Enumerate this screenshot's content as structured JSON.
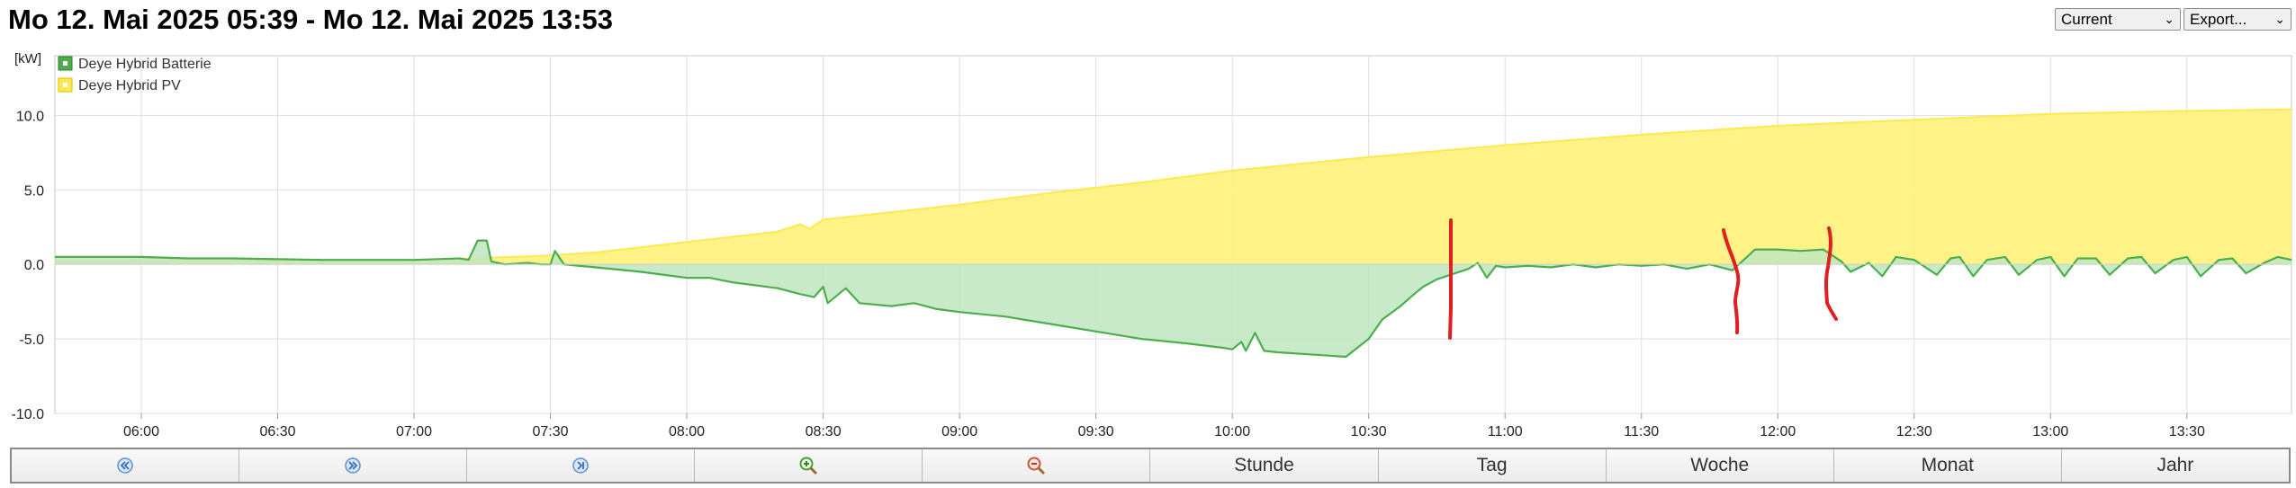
{
  "header": {
    "title": "Mo 12. Mai 2025 05:39 - Mo 12. Mai 2025 13:53",
    "range_select": "Current",
    "export_select": "Export..."
  },
  "nav": {
    "buttons": [
      {
        "name": "rewind-button",
        "icon": "double-left-icon",
        "label": ""
      },
      {
        "name": "forward-button",
        "icon": "double-right-icon",
        "label": ""
      },
      {
        "name": "to-end-button",
        "icon": "skip-end-icon",
        "label": ""
      },
      {
        "name": "zoom-in-button",
        "icon": "zoom-in-icon",
        "label": ""
      },
      {
        "name": "zoom-out-button",
        "icon": "zoom-out-icon",
        "label": ""
      },
      {
        "name": "hour-button",
        "icon": "",
        "label": "Stunde"
      },
      {
        "name": "day-button",
        "icon": "",
        "label": "Tag"
      },
      {
        "name": "week-button",
        "icon": "",
        "label": "Woche"
      },
      {
        "name": "month-button",
        "icon": "",
        "label": "Monat"
      },
      {
        "name": "year-button",
        "icon": "",
        "label": "Jahr"
      }
    ]
  },
  "chart_data": {
    "type": "area",
    "ylabel": "[kW]",
    "ylim": [
      -10,
      14
    ],
    "yticks": [
      10.0,
      5.0,
      0.0,
      -5.0,
      -10.0
    ],
    "ytick_labels": [
      "10.0",
      "5.0",
      "0.0",
      "-5.0",
      "-10.0"
    ],
    "xlim": [
      "05:41",
      "13:53"
    ],
    "xtick_labels": [
      "06:00",
      "06:30",
      "07:00",
      "07:30",
      "08:00",
      "08:30",
      "09:00",
      "09:30",
      "10:00",
      "10:30",
      "11:00",
      "11:30",
      "12:00",
      "12:30",
      "13:00",
      "13:30"
    ],
    "grid": true,
    "legend_position": "top-left",
    "series": [
      {
        "name": "Deye Hybrid Batterie",
        "color": "#4cae4c",
        "fill": "#c0e6bf",
        "points": [
          [
            "05:41",
            0.5
          ],
          [
            "05:50",
            0.5
          ],
          [
            "06:00",
            0.5
          ],
          [
            "06:10",
            0.4
          ],
          [
            "06:20",
            0.4
          ],
          [
            "06:30",
            0.35
          ],
          [
            "06:40",
            0.3
          ],
          [
            "06:50",
            0.3
          ],
          [
            "07:00",
            0.3
          ],
          [
            "07:10",
            0.4
          ],
          [
            "07:12",
            0.3
          ],
          [
            "07:14",
            1.6
          ],
          [
            "07:16",
            1.6
          ],
          [
            "07:17",
            0.2
          ],
          [
            "07:20",
            0.0
          ],
          [
            "07:25",
            0.1
          ],
          [
            "07:28",
            0.0
          ],
          [
            "07:30",
            0.0
          ],
          [
            "07:31",
            0.9
          ],
          [
            "07:33",
            0.0
          ],
          [
            "07:40",
            -0.2
          ],
          [
            "07:50",
            -0.5
          ],
          [
            "08:00",
            -0.9
          ],
          [
            "08:05",
            -0.9
          ],
          [
            "08:10",
            -1.2
          ],
          [
            "08:20",
            -1.6
          ],
          [
            "08:25",
            -2.0
          ],
          [
            "08:28",
            -2.2
          ],
          [
            "08:30",
            -1.5
          ],
          [
            "08:31",
            -2.6
          ],
          [
            "08:35",
            -1.6
          ],
          [
            "08:38",
            -2.6
          ],
          [
            "08:45",
            -2.8
          ],
          [
            "08:50",
            -2.6
          ],
          [
            "08:55",
            -3.0
          ],
          [
            "09:00",
            -3.2
          ],
          [
            "09:10",
            -3.5
          ],
          [
            "09:20",
            -4.0
          ],
          [
            "09:30",
            -4.5
          ],
          [
            "09:40",
            -5.0
          ],
          [
            "09:50",
            -5.3
          ],
          [
            "09:58",
            -5.6
          ],
          [
            "10:00",
            -5.7
          ],
          [
            "10:02",
            -5.2
          ],
          [
            "10:03",
            -5.8
          ],
          [
            "10:05",
            -4.6
          ],
          [
            "10:07",
            -5.8
          ],
          [
            "10:10",
            -5.9
          ],
          [
            "10:20",
            -6.1
          ],
          [
            "10:25",
            -6.2
          ],
          [
            "10:30",
            -5.0
          ],
          [
            "10:33",
            -3.7
          ],
          [
            "10:37",
            -2.8
          ],
          [
            "10:40",
            -2.0
          ],
          [
            "10:42",
            -1.5
          ],
          [
            "10:45",
            -1.0
          ],
          [
            "10:49",
            -0.6
          ],
          [
            "10:52",
            -0.3
          ],
          [
            "10:54",
            0.1
          ],
          [
            "10:56",
            -0.9
          ],
          [
            "10:58",
            -0.1
          ],
          [
            "11:00",
            -0.2
          ],
          [
            "11:05",
            -0.1
          ],
          [
            "11:10",
            -0.2
          ],
          [
            "11:15",
            0.0
          ],
          [
            "11:20",
            -0.2
          ],
          [
            "11:25",
            0.0
          ],
          [
            "11:30",
            -0.1
          ],
          [
            "11:35",
            0.0
          ],
          [
            "11:40",
            -0.3
          ],
          [
            "11:45",
            0.0
          ],
          [
            "11:50",
            -0.4
          ],
          [
            "11:55",
            1.0
          ],
          [
            "12:00",
            1.0
          ],
          [
            "12:05",
            0.9
          ],
          [
            "12:10",
            1.0
          ],
          [
            "12:14",
            0.2
          ],
          [
            "12:16",
            -0.5
          ],
          [
            "12:20",
            0.1
          ],
          [
            "12:23",
            -0.8
          ],
          [
            "12:26",
            0.5
          ],
          [
            "12:30",
            0.3
          ],
          [
            "12:35",
            -0.7
          ],
          [
            "12:38",
            0.4
          ],
          [
            "12:40",
            0.5
          ],
          [
            "12:43",
            -0.8
          ],
          [
            "12:46",
            0.3
          ],
          [
            "12:50",
            0.5
          ],
          [
            "12:53",
            -0.7
          ],
          [
            "12:57",
            0.3
          ],
          [
            "13:00",
            0.5
          ],
          [
            "13:03",
            -0.8
          ],
          [
            "13:06",
            0.4
          ],
          [
            "13:10",
            0.4
          ],
          [
            "13:13",
            -0.7
          ],
          [
            "13:17",
            0.4
          ],
          [
            "13:20",
            0.5
          ],
          [
            "13:23",
            -0.6
          ],
          [
            "13:27",
            0.3
          ],
          [
            "13:30",
            0.5
          ],
          [
            "13:33",
            -0.8
          ],
          [
            "13:37",
            0.3
          ],
          [
            "13:40",
            0.4
          ],
          [
            "13:43",
            -0.6
          ],
          [
            "13:47",
            0.1
          ],
          [
            "13:50",
            0.5
          ],
          [
            "13:53",
            0.3
          ]
        ]
      },
      {
        "name": "Deye Hybrid PV",
        "color": "#ffe94f",
        "fill": "#fff281",
        "points": [
          [
            "05:41",
            0.2
          ],
          [
            "07:00",
            0.25
          ],
          [
            "07:30",
            0.6
          ],
          [
            "07:40",
            0.8
          ],
          [
            "08:00",
            1.5
          ],
          [
            "08:20",
            2.2
          ],
          [
            "08:25",
            2.7
          ],
          [
            "08:27",
            2.4
          ],
          [
            "08:30",
            3.0
          ],
          [
            "08:45",
            3.5
          ],
          [
            "09:00",
            4.0
          ],
          [
            "09:20",
            4.8
          ],
          [
            "09:40",
            5.5
          ],
          [
            "10:00",
            6.3
          ],
          [
            "10:30",
            7.2
          ],
          [
            "11:00",
            8.0
          ],
          [
            "11:30",
            8.7
          ],
          [
            "12:00",
            9.3
          ],
          [
            "12:30",
            9.7
          ],
          [
            "13:00",
            10.1
          ],
          [
            "13:30",
            10.3
          ],
          [
            "13:53",
            10.4
          ]
        ]
      }
    ]
  }
}
